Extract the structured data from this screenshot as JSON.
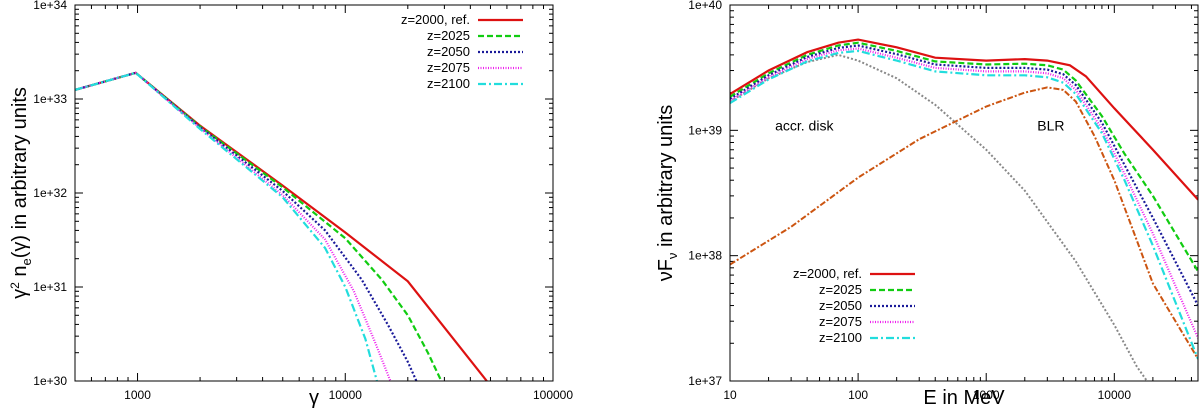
{
  "chart_data": [
    {
      "type": "line",
      "xscale": "log",
      "yscale": "log",
      "xlim": [
        500,
        100000
      ],
      "ylim": [
        1e+30,
        1e+34
      ],
      "xlabel": "γ",
      "ylabel": "γ² n_e(γ) in arbitrary units",
      "ylabel_parts": {
        "a": "γ",
        "b": "2",
        "c": " n",
        "d": "e",
        "e": "(γ) in arbitrary units"
      },
      "xticks": [
        1000,
        10000,
        100000
      ],
      "xtick_labels": [
        "1000",
        "10000",
        "100000"
      ],
      "yticks": [
        1e+30,
        1e+31,
        1e+32,
        1e+33,
        1e+34
      ],
      "ytick_labels": [
        "1e+30",
        "1e+31",
        "1e+32",
        "1e+33",
        "1e+34"
      ],
      "legend_position": "top-right",
      "series": [
        {
          "name": "z=2000, ref.",
          "color": "#dd1111",
          "dash": "solid",
          "x": [
            500,
            980,
            2000,
            5000,
            10000,
            20000,
            48000
          ],
          "y": [
            1.25e+33,
            1.9e+33,
            5.2e+32,
            1.2e+32,
            3.8e+31,
            1.15e+31,
            1e+30
          ]
        },
        {
          "name": "z=2025",
          "color": "#11cc11",
          "dash": "6,3",
          "x": [
            500,
            980,
            2000,
            5000,
            10000,
            15000,
            20000,
            25000,
            29000
          ],
          "y": [
            1.25e+33,
            1.9e+33,
            5.1e+32,
            1.15e+32,
            3.3e+31,
            1.2e+31,
            5e+30,
            2e+30,
            1e+30
          ]
        },
        {
          "name": "z=2050",
          "color": "#1a1a99",
          "dash": "2,2",
          "x": [
            500,
            980,
            2000,
            5000,
            8000,
            12000,
            16000,
            20000,
            22000
          ],
          "y": [
            1.25e+33,
            1.9e+33,
            5e+32,
            1.05e+32,
            4e+31,
            1.2e+31,
            4e+30,
            1.6e+30,
            1e+30
          ]
        },
        {
          "name": "z=2075",
          "color": "#ee22ee",
          "dash": "1,1.5",
          "x": [
            500,
            980,
            2000,
            5000,
            8000,
            11000,
            14000,
            16500
          ],
          "y": [
            1.25e+33,
            1.9e+33,
            4.9e+32,
            9.5e+31,
            3.2e+31,
            9e+30,
            2.5e+30,
            1e+30
          ]
        },
        {
          "name": "z=2100",
          "color": "#22dddd",
          "dash": "8,3,2,3",
          "x": [
            500,
            980,
            2000,
            5000,
            8000,
            10000,
            12500,
            14200
          ],
          "y": [
            1.25e+33,
            1.9e+33,
            4.8e+32,
            9e+31,
            2.6e+31,
            1e+31,
            2.8e+30,
            1e+30
          ]
        }
      ]
    },
    {
      "type": "line",
      "xscale": "log",
      "yscale": "log",
      "xlim": [
        10,
        45000
      ],
      "ylim": [
        1e+37,
        1e+40
      ],
      "xlabel": "E in MeV",
      "ylabel": "νF_ν in arbitrary units",
      "ylabel_parts": {
        "a": "νF",
        "b": "ν",
        "c": " in arbitrary units"
      },
      "xticks": [
        10,
        100,
        1000,
        10000
      ],
      "xtick_labels": [
        "10",
        "100",
        "1000",
        "10000"
      ],
      "yticks": [
        1e+37,
        1e+38,
        1e+39,
        1e+40
      ],
      "ytick_labels": [
        "1e+37",
        "1e+38",
        "1e+39",
        "1e+40"
      ],
      "legend_position": "bottom-left",
      "annotations": [
        {
          "text": "accr. disk",
          "x": 38,
          "y": 1e+39
        },
        {
          "text": "BLR",
          "x": 3200,
          "y": 1e+39
        }
      ],
      "components": [
        {
          "name": "accr. disk",
          "color": "#888888",
          "dash": "2,2",
          "x": [
            10,
            20,
            40,
            70,
            100,
            200,
            400,
            1000,
            2000,
            5000,
            10000,
            15000,
            18000
          ],
          "y": [
            1.7e+39,
            2.6e+39,
            3.5e+39,
            4e+39,
            3.6e+39,
            2.6e+39,
            1.6e+39,
            7e+38,
            3.3e+38,
            9e+37,
            2.8e+37,
            1.3e+37,
            1e+37
          ]
        },
        {
          "name": "BLR",
          "color": "#cc5511",
          "dash": "6,2,2,2",
          "x": [
            10,
            30,
            100,
            300,
            1000,
            2000,
            3000,
            4000,
            5000,
            7000,
            10000,
            20000,
            45000
          ],
          "y": [
            8.5e+37,
            1.7e+38,
            4.2e+38,
            8.5e+38,
            1.55e+39,
            2e+39,
            2.2e+39,
            2.1e+39,
            1.7e+39,
            9e+38,
            4e+38,
            6e+37,
            1.5e+37
          ]
        }
      ],
      "series": [
        {
          "name": "z=2000, ref.",
          "color": "#dd1111",
          "dash": "solid",
          "x": [
            10,
            20,
            40,
            70,
            100,
            200,
            400,
            1000,
            2000,
            3000,
            4500,
            6000,
            10000,
            20000,
            45000
          ],
          "y": [
            1.95e+39,
            3e+39,
            4.2e+39,
            5e+39,
            5.3e+39,
            4.6e+39,
            3.8e+39,
            3.6e+39,
            3.7e+39,
            3.6e+39,
            3.3e+39,
            2.7e+39,
            1.5e+39,
            7e+38,
            2.8e+38
          ]
        },
        {
          "name": "z=2025",
          "color": "#11cc11",
          "dash": "6,3",
          "x": [
            10,
            20,
            40,
            70,
            100,
            200,
            400,
            1000,
            2000,
            3000,
            4000,
            5000,
            8000,
            12000,
            20000,
            45000
          ],
          "y": [
            1.85e+39,
            2.85e+39,
            4e+39,
            4.75e+39,
            5e+39,
            4.3e+39,
            3.55e+39,
            3.35e+39,
            3.4e+39,
            3.3e+39,
            3.05e+39,
            2.5e+39,
            1.3e+39,
            6.5e+38,
            3e+38,
            7.5e+37
          ]
        },
        {
          "name": "z=2050",
          "color": "#1a1a99",
          "dash": "2,2",
          "x": [
            10,
            20,
            40,
            70,
            100,
            200,
            400,
            1000,
            2000,
            3000,
            4000,
            5000,
            8000,
            12000,
            20000,
            45000
          ],
          "y": [
            1.78e+39,
            2.75e+39,
            3.85e+39,
            4.55e+39,
            4.75e+39,
            4.05e+39,
            3.35e+39,
            3.15e+39,
            3.15e+39,
            3.05e+39,
            2.8e+39,
            2.3e+39,
            1.15e+39,
            5.3e+38,
            2e+38,
            4e+37
          ]
        },
        {
          "name": "z=2075",
          "color": "#ee22ee",
          "dash": "1,1.5",
          "x": [
            10,
            20,
            40,
            70,
            100,
            200,
            400,
            1000,
            2000,
            3000,
            4000,
            5000,
            8000,
            12000,
            20000,
            45000
          ],
          "y": [
            1.72e+39,
            2.65e+39,
            3.7e+39,
            4.35e+39,
            4.5e+39,
            3.8e+39,
            3.15e+39,
            2.95e+39,
            2.95e+39,
            2.85e+39,
            2.6e+39,
            2.1e+39,
            1.03e+39,
            4.5e+38,
            1.5e+38,
            2.2e+37
          ]
        },
        {
          "name": "z=2100",
          "color": "#22dddd",
          "dash": "8,3,2,3",
          "x": [
            10,
            20,
            40,
            70,
            100,
            200,
            400,
            1000,
            2000,
            3000,
            4000,
            5000,
            8000,
            12000,
            20000,
            45000
          ],
          "y": [
            1.65e+39,
            2.55e+39,
            3.55e+39,
            4.15e+39,
            4.3e+39,
            3.6e+39,
            2.95e+39,
            2.75e+39,
            2.75e+39,
            2.65e+39,
            2.4e+39,
            1.95e+39,
            9.5e+38,
            4e+38,
            1.2e+38,
            1.5e+37
          ]
        }
      ]
    }
  ]
}
